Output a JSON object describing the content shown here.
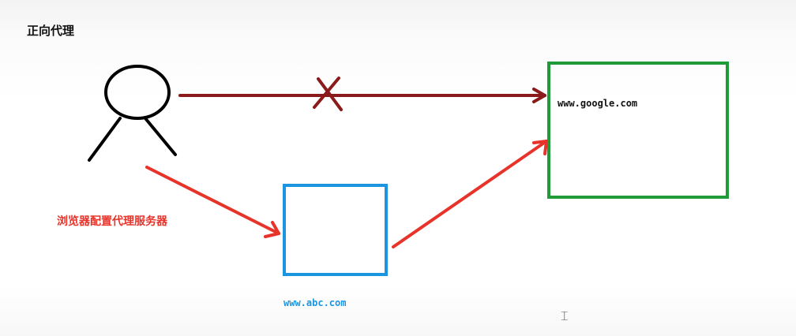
{
  "diagram": {
    "title": "正向代理",
    "client_label": "浏览器配置代理服务器",
    "target_label": "www.google.com",
    "proxy_label": "www.abc.com"
  },
  "colors": {
    "client": "#000000",
    "direct_link": "#8b1a1a",
    "proxy_path": "#e8332a",
    "target_box": "#1f9b3a",
    "proxy_box": "#1c95e0",
    "proxy_text": "#1c95e0",
    "label_red": "#e8332a",
    "target_text": "#111111"
  },
  "icons": {
    "client": "person-icon",
    "blocked": "cross-mark-icon",
    "cursor": "text-cursor-icon"
  }
}
